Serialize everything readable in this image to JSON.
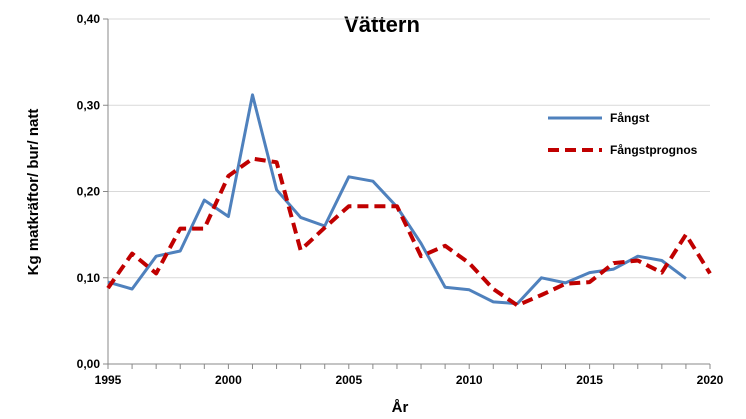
{
  "chart_data": {
    "type": "line",
    "title": "Vättern",
    "xlabel": "År",
    "ylabel": "Kg matkräftor/ bur/ natt",
    "xlim": [
      1995,
      2020
    ],
    "ylim": [
      0,
      0.4
    ],
    "x_ticks": [
      1995,
      2000,
      2005,
      2010,
      2015,
      2020
    ],
    "x_tick_labels": [
      "1995",
      "2000",
      "2005",
      "2010",
      "2015",
      "2020"
    ],
    "y_ticks": [
      0,
      0.1,
      0.2,
      0.3,
      0.4
    ],
    "y_tick_labels": [
      "0,00",
      "0,10",
      "0,20",
      "0,30",
      "0,40"
    ],
    "legend_position": "right",
    "series": [
      {
        "name": "Fångst",
        "color": "#4f81bd",
        "style": "solid",
        "x": [
          1995,
          1996,
          1997,
          1998,
          1999,
          2000,
          2001,
          2002,
          2003,
          2004,
          2005,
          2006,
          2007,
          2008,
          2009,
          2010,
          2011,
          2012,
          2013,
          2014,
          2015,
          2016,
          2017,
          2018,
          2019
        ],
        "values": [
          0.095,
          0.087,
          0.125,
          0.131,
          0.19,
          0.171,
          0.312,
          0.202,
          0.17,
          0.16,
          0.217,
          0.212,
          0.182,
          0.14,
          0.089,
          0.086,
          0.072,
          0.07,
          0.1,
          0.094,
          0.106,
          0.11,
          0.125,
          0.12,
          0.099
        ]
      },
      {
        "name": "Fångstprognos",
        "color": "#c00000",
        "style": "dashed",
        "x": [
          1995,
          1996,
          1997,
          1998,
          1999,
          2000,
          2001,
          2002,
          2003,
          2004,
          2005,
          2006,
          2007,
          2008,
          2009,
          2010,
          2011,
          2012,
          2013,
          2014,
          2015,
          2016,
          2017,
          2018,
          2019,
          2020
        ],
        "values": [
          0.088,
          0.128,
          0.105,
          0.157,
          0.157,
          0.218,
          0.238,
          0.234,
          0.132,
          0.158,
          0.183,
          0.183,
          0.183,
          0.125,
          0.137,
          0.117,
          0.087,
          0.068,
          0.08,
          0.093,
          0.095,
          0.117,
          0.12,
          0.106,
          0.15,
          0.105
        ]
      }
    ]
  }
}
